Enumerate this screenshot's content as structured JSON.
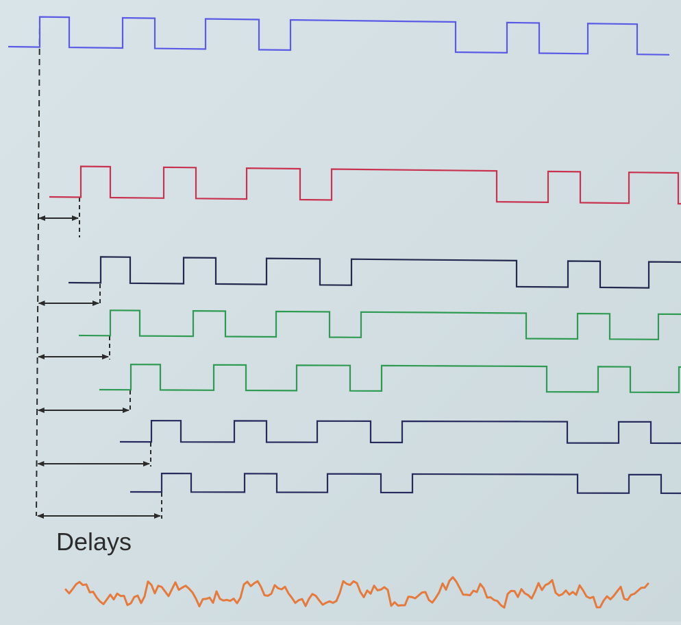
{
  "label": "Delays",
  "colors": {
    "background": "#d3dfe3",
    "reference_signal": "#5a5ae6",
    "delayed_signal_1": "#c8324f",
    "delayed_signal_2": "#22284e",
    "delayed_signal_3": "#2f9a52",
    "delayed_signal_4": "#2f9a52",
    "delayed_signal_5": "#262a5c",
    "delayed_signal_6": "#262a5c",
    "sum_signal": "#e57a3c",
    "guides": "#2a2a2a"
  },
  "icons": {
    "arrow": "double-headed-arrow",
    "guide": "dashed-line"
  }
}
